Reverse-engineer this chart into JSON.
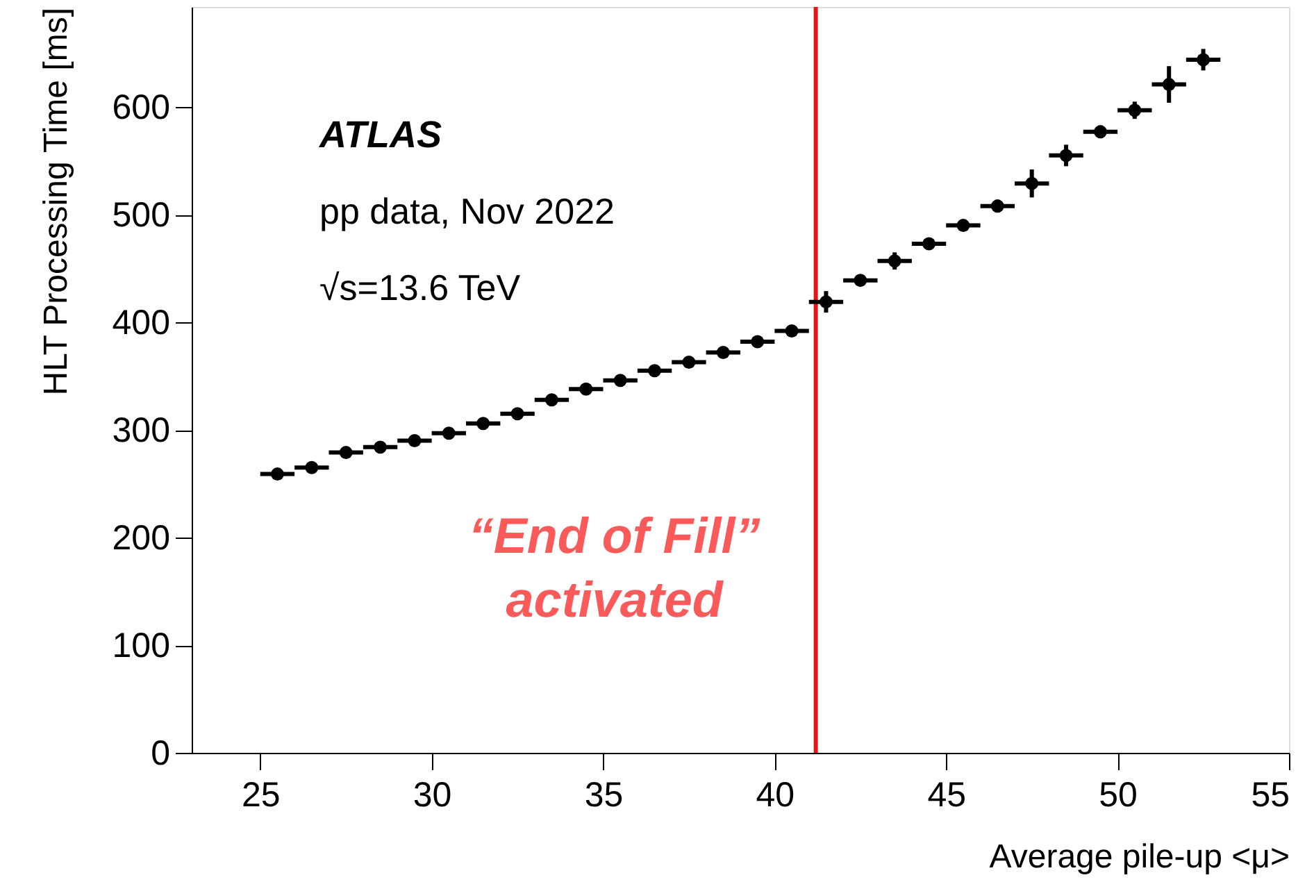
{
  "chart_data": {
    "type": "scatter",
    "xlabel": "Average pile-up <μ>",
    "ylabel": "HLT Processing Time [ms]",
    "x": [
      25.5,
      26.5,
      27.5,
      28.5,
      29.5,
      30.5,
      31.5,
      32.5,
      33.5,
      34.5,
      35.5,
      36.5,
      37.5,
      38.5,
      39.5,
      40.5,
      41.5,
      42.5,
      43.5,
      44.5,
      45.5,
      46.5,
      47.5,
      48.5,
      49.5,
      50.5,
      51.5,
      52.5
    ],
    "series": [
      {
        "color": "#000000",
        "values": [
          259,
          265,
          279,
          284,
          290,
          297,
          306,
          315,
          328,
          338,
          346,
          355,
          363,
          372,
          382,
          392,
          419,
          439,
          457,
          473,
          490,
          508,
          529,
          555,
          577,
          597,
          621,
          644
        ],
        "errors": [
          null,
          null,
          null,
          null,
          null,
          null,
          null,
          null,
          null,
          null,
          null,
          null,
          null,
          null,
          null,
          null,
          10,
          null,
          8,
          null,
          5,
          6,
          13,
          10,
          6,
          8,
          17,
          10
        ],
        "xerrors": [
          0.5,
          0.5,
          0.5,
          0.5,
          0.5,
          0.5,
          0.5,
          0.5,
          0.5,
          0.5,
          0.5,
          0.5,
          0.5,
          0.5,
          0.5,
          0.5,
          0.5,
          0.5,
          0.5,
          0.5,
          0.5,
          0.5,
          0.5,
          0.5,
          0.5,
          0.5,
          0.5,
          0.5
        ]
      }
    ],
    "xlim": [
      23,
      55
    ],
    "ylim": [
      0,
      693
    ],
    "xticks": [
      25,
      30,
      35,
      40,
      45,
      50,
      55
    ],
    "yticks": [
      0,
      100,
      200,
      300,
      400,
      500,
      600
    ],
    "marker": "circle",
    "grid": false,
    "annotations": [
      "ATLAS",
      "pp data, Nov 2022",
      "√s=13.6 TeV"
    ],
    "ref_lines": [
      {
        "axis": "x",
        "value": 41.2,
        "label": "“End of Fill”\nactivated",
        "color": "#e8141a"
      }
    ]
  }
}
